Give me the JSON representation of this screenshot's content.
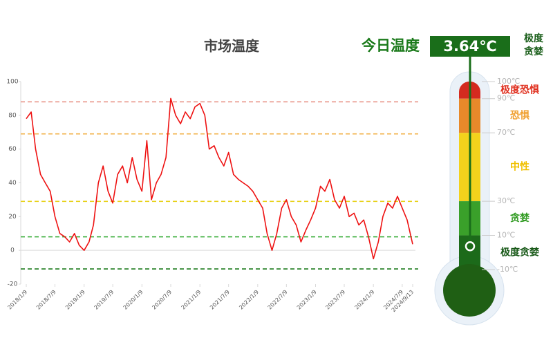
{
  "chart_data": {
    "type": "line",
    "title": "市场温度",
    "x": [
      "2018/1/9",
      "2018/2/9",
      "2018/3/9",
      "2018/4/9",
      "2018/5/9",
      "2018/6/9",
      "2018/7/9",
      "2018/8/9",
      "2018/9/9",
      "2018/10/9",
      "2018/11/9",
      "2018/12/9",
      "2019/1/9",
      "2019/2/9",
      "2019/3/9",
      "2019/4/9",
      "2019/5/9",
      "2019/6/9",
      "2019/7/9",
      "2019/8/9",
      "2019/9/9",
      "2019/10/9",
      "2019/11/9",
      "2019/12/9",
      "2020/1/9",
      "2020/2/9",
      "2020/3/9",
      "2020/4/9",
      "2020/5/9",
      "2020/6/9",
      "2020/7/9",
      "2020/8/9",
      "2020/9/9",
      "2020/10/9",
      "2020/11/9",
      "2020/12/9",
      "2021/1/9",
      "2021/2/9",
      "2021/3/9",
      "2021/4/9",
      "2021/5/9",
      "2021/6/9",
      "2021/7/9",
      "2021/8/9",
      "2021/9/9",
      "2021/10/9",
      "2021/11/9",
      "2021/12/9",
      "2022/1/9",
      "2022/2/9",
      "2022/3/9",
      "2022/4/9",
      "2022/5/9",
      "2022/6/9",
      "2022/7/9",
      "2022/8/9",
      "2022/9/9",
      "2022/10/9",
      "2022/11/9",
      "2022/12/9",
      "2023/1/9",
      "2023/2/9",
      "2023/3/9",
      "2023/4/9",
      "2023/5/9",
      "2023/6/9",
      "2023/7/9",
      "2023/8/9",
      "2023/9/9",
      "2023/10/9",
      "2023/11/9",
      "2023/12/9",
      "2024/1/9",
      "2024/2/9",
      "2024/3/9",
      "2024/4/9",
      "2024/5/9",
      "2024/6/9",
      "2024/7/9",
      "2024/8/9",
      "2024/9/13"
    ],
    "values": [
      78,
      82,
      60,
      45,
      40,
      35,
      20,
      10,
      8,
      5,
      10,
      3,
      0,
      5,
      15,
      40,
      50,
      35,
      28,
      45,
      50,
      40,
      55,
      42,
      35,
      65,
      30,
      40,
      45,
      55,
      90,
      80,
      75,
      82,
      78,
      85,
      87,
      80,
      60,
      62,
      55,
      50,
      58,
      45,
      42,
      40,
      38,
      35,
      30,
      25,
      10,
      0,
      10,
      25,
      30,
      20,
      15,
      5,
      12,
      18,
      25,
      38,
      35,
      42,
      30,
      25,
      32,
      20,
      22,
      15,
      18,
      8,
      -5,
      5,
      20,
      28,
      25,
      32,
      25,
      18,
      3.64
    ],
    "color": "#ee1111",
    "xticks": [
      "2018/1/9",
      "2018/7/9",
      "2019/1/9",
      "2019/7/9",
      "2020/1/9",
      "2020/7/9",
      "2021/1/9",
      "2021/7/9",
      "2022/1/9",
      "2022/7/9",
      "2023/1/9",
      "2023/7/9",
      "2024/1/9",
      "2024/7/9",
      "2024/9/13"
    ],
    "ylim": [
      -20,
      100
    ],
    "yticks": [
      -20,
      0,
      20,
      40,
      60,
      80,
      100
    ],
    "ref_lines": [
      {
        "value": 88,
        "color": "#e8948a"
      },
      {
        "value": 69,
        "color": "#f2b24a"
      },
      {
        "value": 29,
        "color": "#e8d21c"
      },
      {
        "value": 8,
        "color": "#33aa33"
      },
      {
        "value": -11,
        "color": "#1a7a1a"
      }
    ],
    "today": {
      "label": "今日温度",
      "value": 3.64,
      "value_label": "3.64℃",
      "zone": [
        "极度",
        "贪婪"
      ]
    },
    "thermometer": {
      "range": [
        -10,
        100
      ],
      "ticks": [
        {
          "value": 100,
          "label": "100℃"
        },
        {
          "value": 90,
          "label": "90℃"
        },
        {
          "value": 70,
          "label": "70℃"
        },
        {
          "value": 30,
          "label": "30℃"
        },
        {
          "value": 10,
          "label": "10℃"
        },
        {
          "value": -10,
          "label": "-10℃"
        }
      ],
      "zones": [
        {
          "name": "极度恐惧",
          "from": 90,
          "to": 100,
          "color": "#d42a1f",
          "text_color": "#e0301f"
        },
        {
          "name": "恐惧",
          "from": 70,
          "to": 90,
          "color": "#e8892a",
          "text_color": "#f0a030"
        },
        {
          "name": "中性",
          "from": 30,
          "to": 70,
          "color": "#f3d21c",
          "text_color": "#f0c000"
        },
        {
          "name": "贪婪",
          "from": 10,
          "to": 30,
          "color": "#3aa02a",
          "text_color": "#2f9a20"
        },
        {
          "name": "极度贪婪",
          "from": -10,
          "to": 10,
          "color": "#1c6a1a",
          "text_color": "#1a5a1a"
        }
      ]
    }
  }
}
